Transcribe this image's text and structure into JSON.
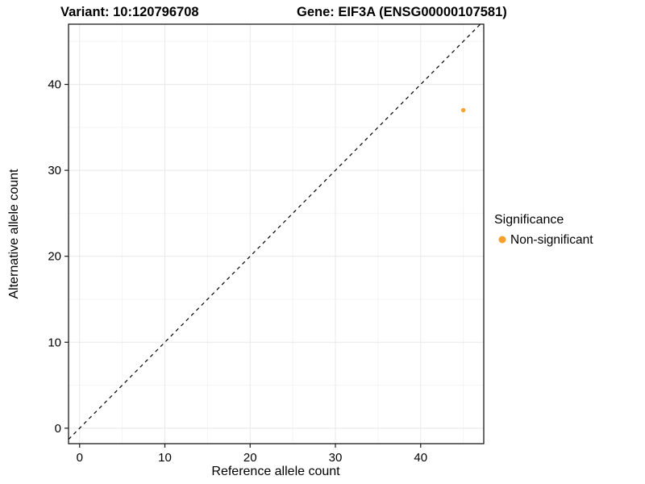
{
  "chart_data": {
    "type": "scatter",
    "title_left": "Variant: 10:120796708",
    "title_right": "Gene: EIF3A (ENSG00000107581)",
    "xlabel": "Reference allele count",
    "ylabel": "Alternative allele count",
    "xlim": [
      -1.3,
      47.4
    ],
    "ylim": [
      -1.8,
      47.0
    ],
    "xticks": [
      0,
      10,
      20,
      30,
      40
    ],
    "yticks": [
      0,
      10,
      20,
      30,
      40
    ],
    "minor_xticks": [
      5,
      15,
      25,
      35,
      45
    ],
    "minor_yticks": [
      5,
      15,
      25,
      35,
      45
    ],
    "grid": true,
    "series": [
      {
        "name": "Non-significant",
        "color": "#F8A02C",
        "points": [
          {
            "x": 45,
            "y": 37
          }
        ]
      }
    ],
    "reference_line": {
      "type": "identity",
      "slope": 1,
      "intercept": 0,
      "style": "dashed",
      "color": "#000000"
    },
    "legend": {
      "title": "Significance",
      "position": "right",
      "entries": [
        {
          "label": "Non-significant",
          "color": "#F8A02C"
        }
      ]
    }
  },
  "colors": {
    "point": "#F8A02C",
    "grid_major": "#e8e8e8",
    "grid_minor": "#f4f4f4",
    "panel_border": "#1a1a1a",
    "background": "#ffffff",
    "text": "#000000"
  }
}
